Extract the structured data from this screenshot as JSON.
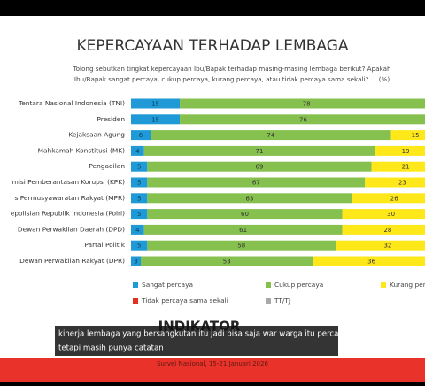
{
  "chart_data": {
    "type": "stacked-bar-horizontal",
    "title": "KEPERCAYAAN TERHADAP LEMBAGA",
    "subtitle": [
      "Tolong sebutkan tingkat kepercayaan Ibu/Bapak terhadap masing-masing lembaga berikut? Apakah",
      "Ibu/Bapak sangat percaya, cukup percaya, kurang percaya, atau tidak percaya sama sekali? ... (%)"
    ],
    "categories": [
      "Tentara Nasional Indonesia (TNI)",
      "Presiden",
      "Kejaksaan Agung",
      "Mahkamah Konstitusi (MK)",
      "Pengadilan",
      "misi Pemberantasan Korupsi (KPK)",
      "s Permusyawaratan Rakyat (MPR)",
      "epolisian Republik Indonesia (Polri)",
      "Dewan Perwakilan Daerah (DPD)",
      "Partai Politik",
      "Dewan Perwakilan Rakyat (DPR)"
    ],
    "series": [
      {
        "name": "Sangat percaya",
        "color": "#1f9ad6",
        "values": [
          15,
          15,
          6,
          4,
          5,
          5,
          5,
          5,
          4,
          5,
          3
        ]
      },
      {
        "name": "Cukup percaya",
        "color": "#86c04f",
        "values": [
          78,
          76,
          74,
          71,
          69,
          67,
          63,
          60,
          61,
          58,
          53
        ]
      },
      {
        "name": "Kurang percaya",
        "color": "#ffe81a",
        "values": [
          null,
          null,
          15,
          19,
          21,
          23,
          26,
          30,
          28,
          32,
          36
        ]
      },
      {
        "name": "Tidak percaya sama sekali",
        "color": "#e3301f",
        "values": [
          null,
          null,
          null,
          null,
          null,
          null,
          null,
          null,
          null,
          null,
          null
        ]
      },
      {
        "name": "TT/TJ",
        "color": "#a9a9a9",
        "values": [
          null,
          null,
          null,
          null,
          null,
          null,
          null,
          null,
          null,
          null,
          null
        ]
      }
    ],
    "xlim": [
      0,
      100
    ],
    "legend": "bottom",
    "logo": "INDIKATOR",
    "caption": [
      "kinerja lembaga yang bersangkutan itu jadi bisa saja war warga itu percaya",
      "tetapi masih punya catatan"
    ],
    "source": "Survei Nasional, 15-21 Januari 2026"
  }
}
